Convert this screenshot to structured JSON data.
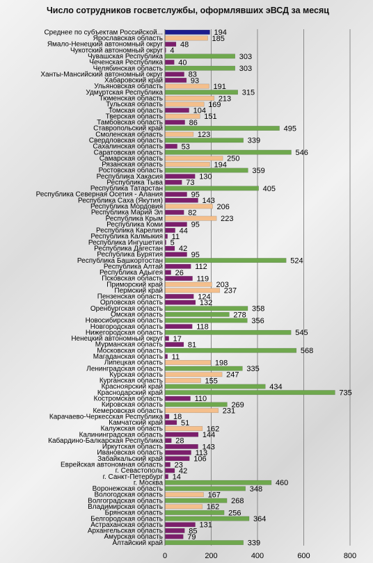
{
  "chart_data": {
    "type": "bar",
    "orientation": "horizontal",
    "title": "Число сотрудников госветслужбы, оформлявших эВСД за месяц",
    "categories": [
      "Среднее по субъектам Российской...",
      "Ярославская область",
      "Ямало-Ненецкий автономный округ",
      "Чукотский автономный округ",
      "Чувашская Республика",
      "Чеченская Республика",
      "Челябинская область",
      "Ханты-Мансийский автономный округ",
      "Хабаровский край",
      "Ульяновская область",
      "Удмуртская Республика",
      "Тюменская область",
      "Тульская область",
      "Томская область",
      "Тверская область",
      "Тамбовская область",
      "Ставропольский край",
      "Смоленская область",
      "Свердловская область",
      "Сахалинская область",
      "Саратовская область",
      "Самарская область",
      "Рязанская область",
      "Ростовская область",
      "Республика Хакасия",
      "Республика Тыва",
      "Республика Татарстан",
      "Республика Северная Осетия - Алания",
      "Республика Саха (Якутия)",
      "Республика Мордовия",
      "Республика Марий Эл",
      "Республика Крым",
      "Республика Коми",
      "Республика Карелия",
      "Республика Калмыкия",
      "Республика Ингушетия",
      "Республика Дагестан",
      "Республика Бурятия",
      "Республика Башкортостан",
      "Республика Алтай",
      "Республика Адыгея",
      "Псковская область",
      "Приморский край",
      "Пермский край",
      "Пензенская область",
      "Орловская область",
      "Оренбургская область",
      "Омская область",
      "Новосибирская область",
      "Новгородская область",
      "Нижегородская область",
      "Ненецкий автономный округ",
      "Мурманская область",
      "Московская область",
      "Магаданская область",
      "Липецкая область",
      "Ленинградская область",
      "Курская область",
      "Курганская область",
      "Красноярский край",
      "Краснодарский край",
      "Костромская область",
      "Кировская область",
      "Кемеровская область",
      "Карачаево-Черкесская Республика",
      "Камчатский край",
      "Калужская область",
      "Калининградская область",
      "Кабардино-Балкарская Республика",
      "Иркутская область",
      "Ивановская область",
      "Забайкальский край",
      "Еврейская автономная область",
      "г. Севастополь",
      "г. Санкт-Петербург",
      "г. Москва",
      "Воронежская область",
      "Вологодская область",
      "Волгоградская область",
      "Владимирская область",
      "Брянская область",
      "Белгородская область",
      "Астраханская область",
      "Архангельская область",
      "Амурская область",
      "Алтайский край"
    ],
    "values": [
      194,
      185,
      48,
      4,
      303,
      40,
      303,
      83,
      93,
      191,
      315,
      213,
      169,
      104,
      151,
      86,
      495,
      123,
      339,
      53,
      546,
      250,
      194,
      359,
      130,
      73,
      405,
      95,
      143,
      206,
      82,
      223,
      95,
      44,
      11,
      5,
      42,
      95,
      524,
      112,
      26,
      119,
      203,
      237,
      124,
      132,
      358,
      278,
      356,
      118,
      545,
      17,
      81,
      568,
      11,
      198,
      335,
      247,
      155,
      434,
      735,
      110,
      269,
      231,
      18,
      51,
      162,
      144,
      28,
      143,
      113,
      106,
      23,
      42,
      14,
      460,
      348,
      167,
      268,
      162,
      256,
      364,
      131,
      85,
      79,
      339
    ],
    "colors": [
      "#1c1c8e",
      "#f4bf8c",
      "#7c1f6c",
      "#7c1f6c",
      "#6fa84e",
      "#7c1f6c",
      "#6fa84e",
      "#7c1f6c",
      "#7c1f6c",
      "#f4bf8c",
      "#6fa84e",
      "#f4bf8c",
      "#f4bf8c",
      "#7c1f6c",
      "#f4bf8c",
      "#7c1f6c",
      "#6fa84e",
      "#f4bf8c",
      "#6fa84e",
      "#7c1f6c",
      "#6fa84e",
      "#f4bf8c",
      "#f4bf8c",
      "#6fa84e",
      "#7c1f6c",
      "#7c1f6c",
      "#6fa84e",
      "#7c1f6c",
      "#7c1f6c",
      "#f4bf8c",
      "#7c1f6c",
      "#f4bf8c",
      "#7c1f6c",
      "#7c1f6c",
      "#7c1f6c",
      "#7c1f6c",
      "#7c1f6c",
      "#7c1f6c",
      "#6fa84e",
      "#7c1f6c",
      "#7c1f6c",
      "#7c1f6c",
      "#f4bf8c",
      "#f4bf8c",
      "#7c1f6c",
      "#7c1f6c",
      "#6fa84e",
      "#6fa84e",
      "#6fa84e",
      "#7c1f6c",
      "#6fa84e",
      "#7c1f6c",
      "#7c1f6c",
      "#6fa84e",
      "#7c1f6c",
      "#f4bf8c",
      "#6fa84e",
      "#f4bf8c",
      "#f4bf8c",
      "#6fa84e",
      "#6fa84e",
      "#7c1f6c",
      "#6fa84e",
      "#f4bf8c",
      "#7c1f6c",
      "#7c1f6c",
      "#f4bf8c",
      "#7c1f6c",
      "#7c1f6c",
      "#7c1f6c",
      "#7c1f6c",
      "#7c1f6c",
      "#7c1f6c",
      "#7c1f6c",
      "#7c1f6c",
      "#6fa84e",
      "#6fa84e",
      "#f4bf8c",
      "#6fa84e",
      "#f4bf8c",
      "#6fa84e",
      "#6fa84e",
      "#7c1f6c",
      "#7c1f6c",
      "#7c1f6c",
      "#6fa84e"
    ],
    "xlim": [
      0,
      800
    ],
    "xticks": [
      0,
      200,
      400,
      600,
      800
    ],
    "grid": true
  }
}
